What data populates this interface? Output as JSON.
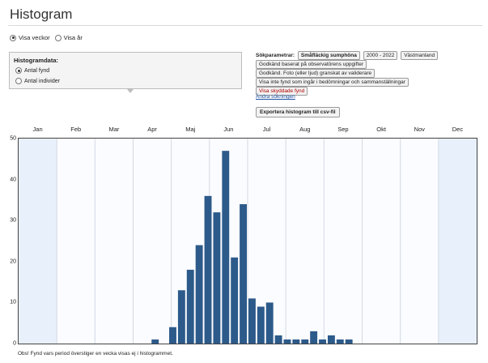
{
  "page": {
    "title": "Histogram"
  },
  "view_toggle": {
    "options": [
      {
        "label": "Visa veckor",
        "checked": true
      },
      {
        "label": "Visa år",
        "checked": false
      }
    ]
  },
  "histogram_data": {
    "heading": "Histogramdata:",
    "options": [
      {
        "label": "Antal fynd",
        "checked": true
      },
      {
        "label": "Antal individer",
        "checked": false
      }
    ]
  },
  "search_params": {
    "label": "Sökparametrar:",
    "chips": [
      "Småfläckig sumphöna",
      "2000 - 2022",
      "Västmanland",
      "Godkänd baserat på observatörens uppgifter",
      "Godkänd. Foto (eller ljud) granskat av validerare",
      "Visa inte fynd som ingår i bedömningar och sammanställningar",
      "Visa skyddade fynd"
    ],
    "change_link": "Ändra sökningen",
    "export_button": "Exportera histogram till csv-fil"
  },
  "note": "Obs! Fynd vars period överstiger en vecka visas ej i histogrammet.",
  "colors": {
    "bar": "#2c5a8a",
    "plot_bg_light": "#fbfcff",
    "plot_bg_dark": "#e8f0fb"
  },
  "chart_data": {
    "type": "bar",
    "months": [
      "Jan",
      "Feb",
      "Mar",
      "Apr",
      "Maj",
      "Jun",
      "Jul",
      "Aug",
      "Sep",
      "Okt",
      "Nov",
      "Dec"
    ],
    "yticks": [
      0,
      10,
      20,
      30,
      40,
      50
    ],
    "ylim": [
      0,
      50
    ],
    "weeks": [
      1,
      2,
      3,
      4,
      5,
      6,
      7,
      8,
      9,
      10,
      11,
      12,
      13,
      14,
      15,
      16,
      17,
      18,
      19,
      20,
      21,
      22,
      23,
      24,
      25,
      26,
      27,
      28,
      29,
      30,
      31,
      32,
      33,
      34,
      35,
      36,
      37,
      38,
      39,
      40,
      41,
      42,
      43,
      44,
      45,
      46,
      47,
      48,
      49,
      50,
      51,
      52
    ],
    "values": [
      0,
      0,
      0,
      0,
      0,
      0,
      0,
      0,
      0,
      0,
      0,
      0,
      0,
      0,
      0,
      1,
      0,
      4,
      13,
      18,
      24,
      36,
      32,
      47,
      21,
      34,
      11,
      9,
      10,
      2,
      1,
      1,
      1,
      3,
      1,
      2,
      1,
      1,
      0,
      0,
      0,
      0,
      0,
      0,
      0,
      0,
      0,
      0,
      0,
      0,
      0,
      0
    ]
  }
}
